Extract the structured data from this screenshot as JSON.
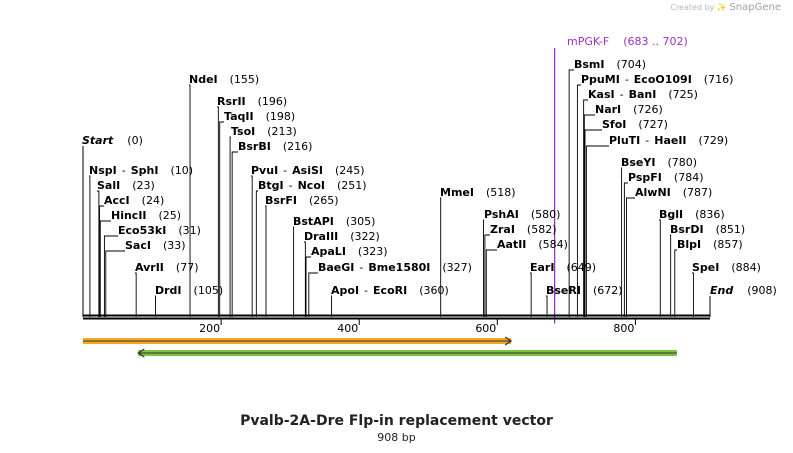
{
  "watermark": {
    "prefix": "Created by",
    "brand": "SnapGene"
  },
  "map": {
    "title": "Pvalb-2A-Dre Flp-in replacement vector",
    "length_label": "908 bp",
    "length": 908,
    "ruler_ticks": [
      "200",
      "400",
      "600",
      "800"
    ],
    "start_label": "Start",
    "start_pos": "(0)",
    "end_label": "End",
    "end_pos": "(908)",
    "primer": {
      "name": "mPGK-F",
      "range": "(683 .. 702)",
      "start": 683,
      "end": 702,
      "color": "#9b30c8"
    },
    "features": [
      {
        "name": "orange feature",
        "start": 0,
        "end": 620,
        "direction": "forward",
        "color": "#f5a623"
      },
      {
        "name": "green feature",
        "start": 80,
        "end": 860,
        "direction": "reverse",
        "color": "#7dc242"
      }
    ],
    "sites": [
      {
        "name": "NspI",
        "alt": "SphI",
        "pos": "(10)",
        "cut": 10
      },
      {
        "name": "SalI",
        "pos": "(23)",
        "cut": 23
      },
      {
        "name": "AccI",
        "pos": "(24)",
        "cut": 24
      },
      {
        "name": "HincII",
        "pos": "(25)",
        "cut": 25
      },
      {
        "name": "Eco53kI",
        "pos": "(31)",
        "cut": 31
      },
      {
        "name": "SacI",
        "pos": "(33)",
        "cut": 33
      },
      {
        "name": "AvrII",
        "pos": "(77)",
        "cut": 77
      },
      {
        "name": "DrdI",
        "pos": "(105)",
        "cut": 105
      },
      {
        "name": "NdeI",
        "pos": "(155)",
        "cut": 155
      },
      {
        "name": "RsrII",
        "pos": "(196)",
        "cut": 196
      },
      {
        "name": "TaqII",
        "pos": "(198)",
        "cut": 198
      },
      {
        "name": "TsoI",
        "pos": "(213)",
        "cut": 213
      },
      {
        "name": "BsrBI",
        "pos": "(216)",
        "cut": 216
      },
      {
        "name": "PvuI",
        "alt": "AsiSI",
        "pos": "(245)",
        "cut": 245
      },
      {
        "name": "BtgI",
        "alt": "NcoI",
        "pos": "(251)",
        "cut": 251
      },
      {
        "name": "BsrFI",
        "pos": "(265)",
        "cut": 265
      },
      {
        "name": "BstAPI",
        "pos": "(305)",
        "cut": 305
      },
      {
        "name": "DraIII",
        "pos": "(322)",
        "cut": 322
      },
      {
        "name": "ApaLI",
        "pos": "(323)",
        "cut": 323
      },
      {
        "name": "BaeGI",
        "alt": "Bme1580I",
        "pos": "(327)",
        "cut": 327
      },
      {
        "name": "ApoI",
        "alt": "EcoRI",
        "pos": "(360)",
        "cut": 360
      },
      {
        "name": "MmeI",
        "pos": "(518)",
        "cut": 518
      },
      {
        "name": "PshAI",
        "pos": "(580)",
        "cut": 580
      },
      {
        "name": "ZraI",
        "pos": "(582)",
        "cut": 582
      },
      {
        "name": "AatII",
        "pos": "(584)",
        "cut": 584
      },
      {
        "name": "EarI",
        "pos": "(649)",
        "cut": 649
      },
      {
        "name": "BseRI",
        "pos": "(672)",
        "cut": 672
      },
      {
        "name": "BsmI",
        "pos": "(704)",
        "cut": 704
      },
      {
        "name": "PpuMI",
        "alt": "EcoO109I",
        "pos": "(716)",
        "cut": 716
      },
      {
        "name": "KasI",
        "alt": "BanI",
        "pos": "(725)",
        "cut": 725
      },
      {
        "name": "NarI",
        "pos": "(726)",
        "cut": 726
      },
      {
        "name": "SfoI",
        "pos": "(727)",
        "cut": 727
      },
      {
        "name": "PluTI",
        "alt": "HaeII",
        "pos": "(729)",
        "cut": 729
      },
      {
        "name": "BseYI",
        "pos": "(780)",
        "cut": 780
      },
      {
        "name": "PspFI",
        "pos": "(784)",
        "cut": 784
      },
      {
        "name": "AlwNI",
        "pos": "(787)",
        "cut": 787
      },
      {
        "name": "BglI",
        "pos": "(836)",
        "cut": 836
      },
      {
        "name": "BsrDI",
        "pos": "(851)",
        "cut": 851
      },
      {
        "name": "BlpI",
        "pos": "(857)",
        "cut": 857
      },
      {
        "name": "SpeI",
        "pos": "(884)",
        "cut": 884
      }
    ]
  }
}
